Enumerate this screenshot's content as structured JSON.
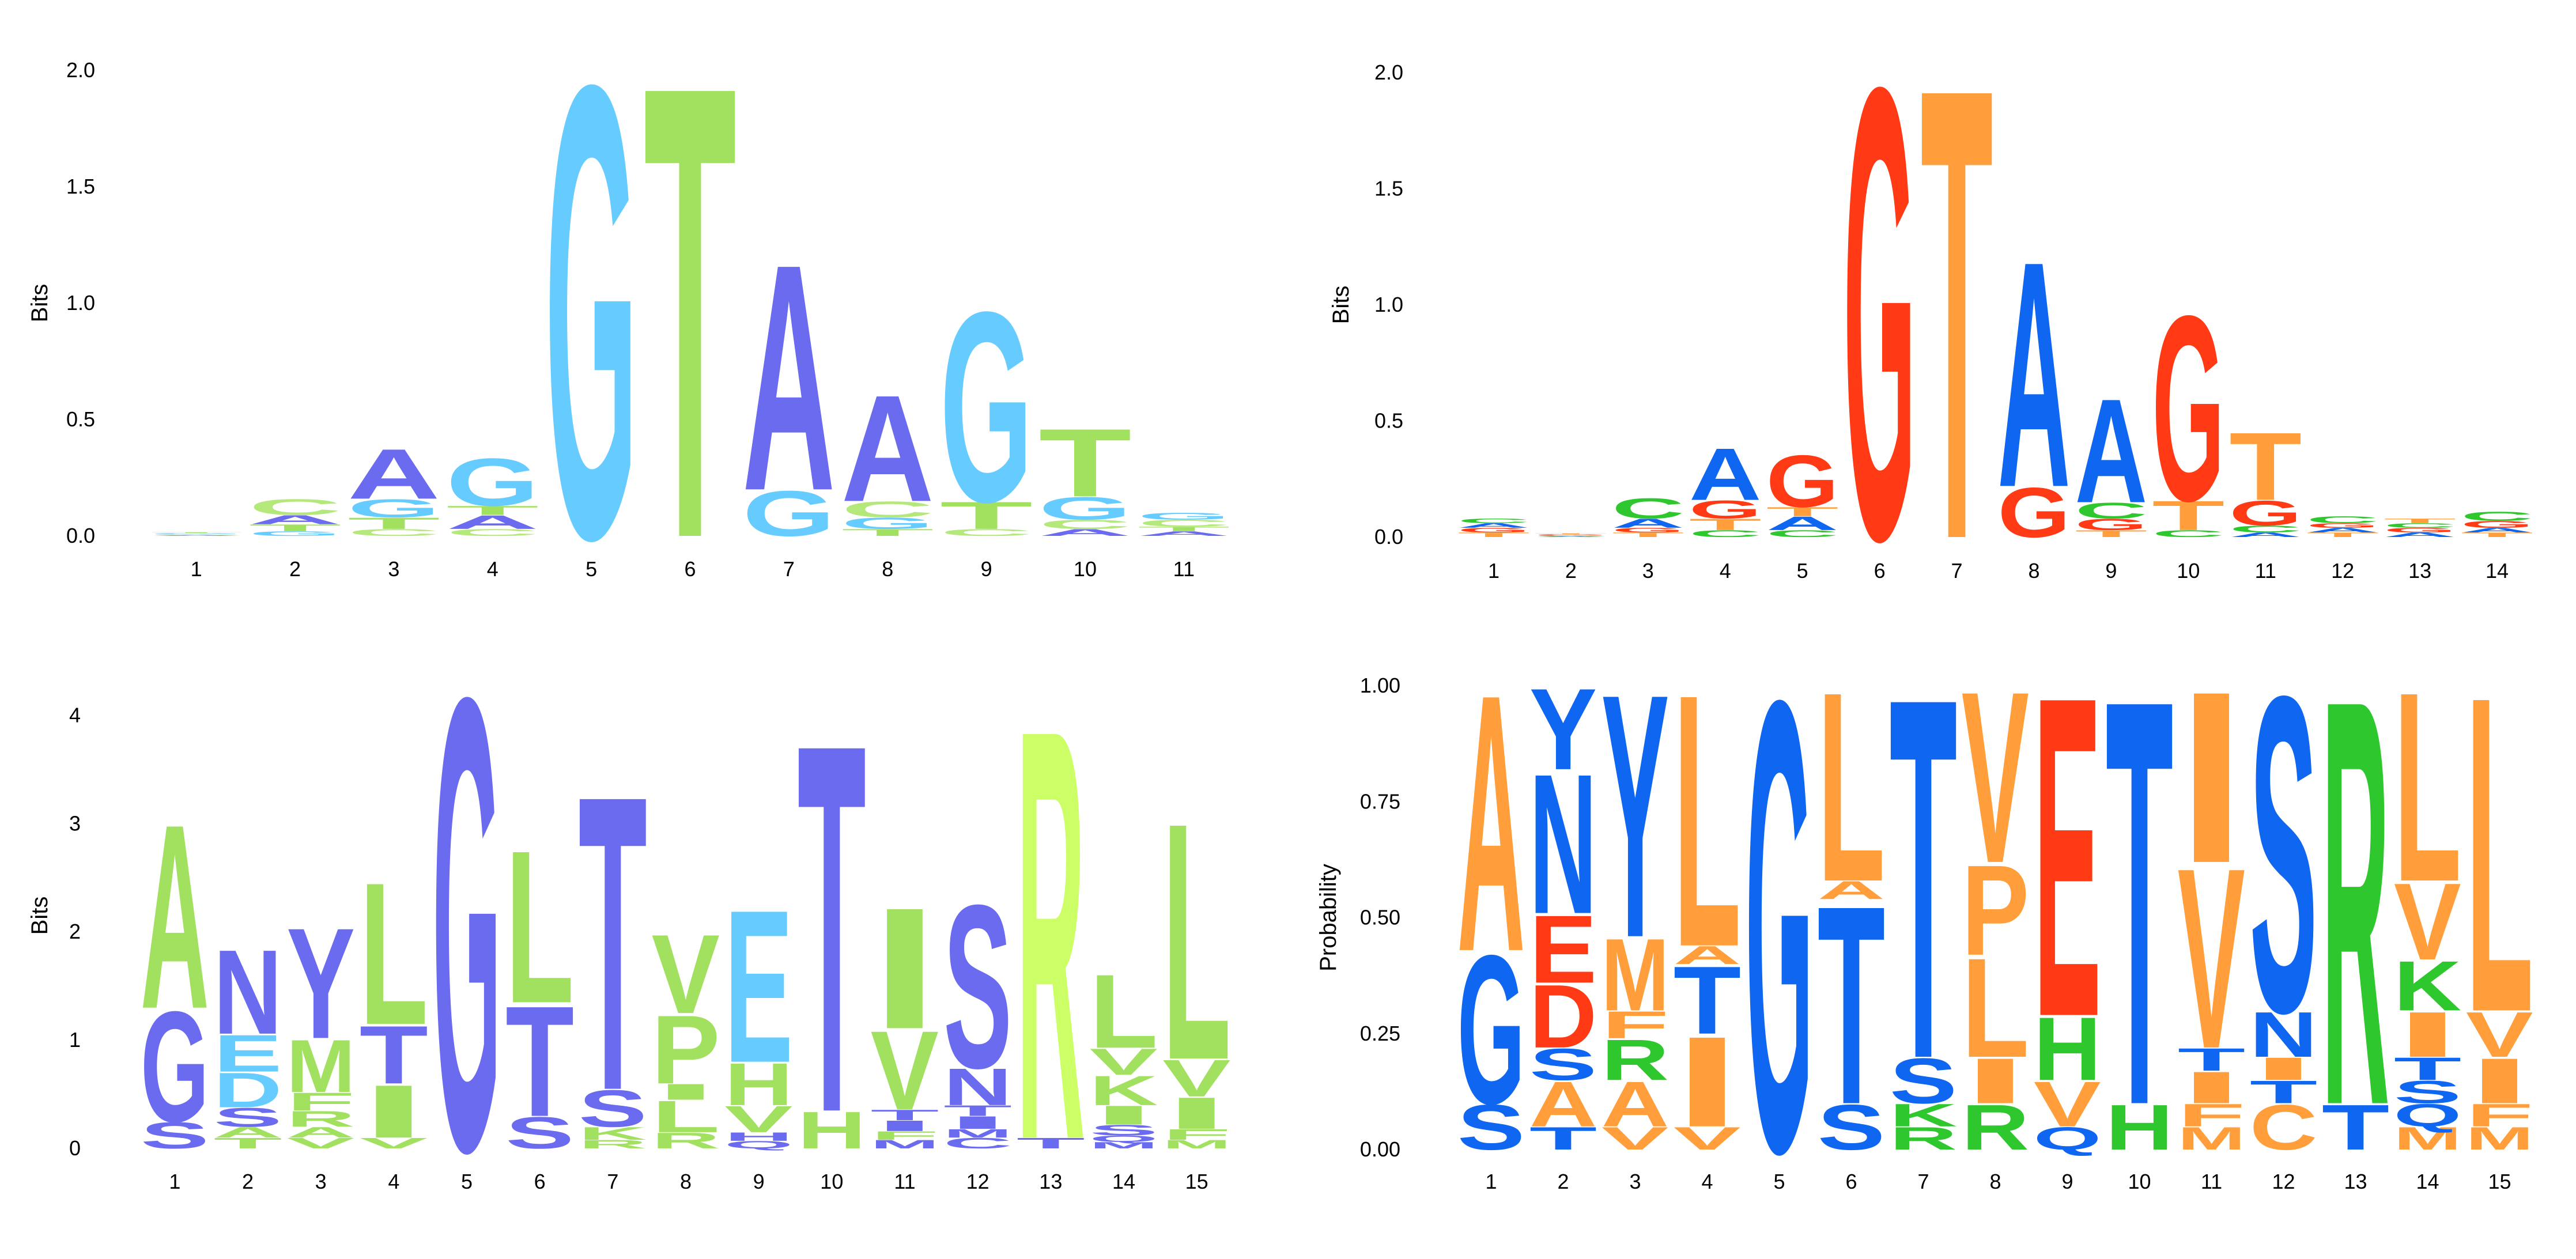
{
  "colors": {
    "p1": {
      "A": "#6b6bf0",
      "C": "#b5e87a",
      "G": "#66ccff",
      "T": "#a2e060"
    },
    "p2": {
      "A": "#0f66f0",
      "C": "#2ec82e",
      "G": "#ff3a14",
      "T": "#ff9e3a"
    },
    "p3": {
      "h1": "#6b6bf0",
      "h2": "#a2e060",
      "h3": "#66ccff",
      "h4": "#ccff66"
    },
    "p4": {
      "A": "#ff9e3a",
      "C": "#ff9e3a",
      "D": "#ff3a14",
      "E": "#ff3a14",
      "F": "#ff9e3a",
      "G": "#0f66f0",
      "H": "#2ec82e",
      "I": "#ff9e3a",
      "K": "#2ec82e",
      "L": "#ff9e3a",
      "M": "#ff9e3a",
      "N": "#0f66f0",
      "P": "#ff9e3a",
      "Q": "#0f66f0",
      "R": "#2ec82e",
      "S": "#0f66f0",
      "T": "#0f66f0",
      "V": "#ff9e3a",
      "W": "#ff9e3a",
      "Y": "#0f66f0"
    }
  },
  "chart_data": [
    {
      "type": "sequence-logo",
      "ylabel": "Bits",
      "ylim": [
        0,
        2
      ],
      "yticks": [
        "0.0",
        "0.5",
        "1.0",
        "1.5",
        "2.0"
      ],
      "positions": [
        "1",
        "2",
        "3",
        "4",
        "5",
        "6",
        "7",
        "8",
        "9",
        "10",
        "11"
      ],
      "stacks": [
        [
          [
            "A",
            0.004
          ],
          [
            "C",
            0.004
          ],
          [
            "G",
            0.004
          ],
          [
            "T",
            0.004
          ]
        ],
        [
          [
            "G",
            0.02
          ],
          [
            "T",
            0.03
          ],
          [
            "A",
            0.04
          ],
          [
            "C",
            0.07
          ]
        ],
        [
          [
            "C",
            0.03
          ],
          [
            "T",
            0.05
          ],
          [
            "G",
            0.08
          ],
          [
            "A",
            0.22
          ]
        ],
        [
          [
            "C",
            0.03
          ],
          [
            "A",
            0.06
          ],
          [
            "T",
            0.04
          ],
          [
            "G",
            0.21
          ]
        ],
        [
          [
            "G",
            2.0
          ]
        ],
        [
          [
            "T",
            2.0
          ]
        ],
        [
          [
            "G",
            0.2
          ],
          [
            "A",
            1.0
          ]
        ],
        [
          [
            "T",
            0.03
          ],
          [
            "G",
            0.05
          ],
          [
            "C",
            0.07
          ],
          [
            "A",
            0.47
          ]
        ],
        [
          [
            "C",
            0.03
          ],
          [
            "T",
            0.12
          ],
          [
            "G",
            0.84
          ]
        ],
        [
          [
            "A",
            0.03
          ],
          [
            "C",
            0.04
          ],
          [
            "G",
            0.1
          ],
          [
            "T",
            0.3
          ]
        ],
        [
          [
            "A",
            0.02
          ],
          [
            "T",
            0.02
          ],
          [
            "C",
            0.03
          ],
          [
            "G",
            0.03
          ]
        ]
      ]
    },
    {
      "type": "sequence-logo",
      "ylabel": "Bits",
      "ylim": [
        0,
        2
      ],
      "yticks": [
        "0.0",
        "0.5",
        "1.0",
        "1.5",
        "2.0"
      ],
      "positions": [
        "1",
        "2",
        "3",
        "4",
        "5",
        "6",
        "7",
        "8",
        "9",
        "10",
        "11",
        "12",
        "13",
        "14"
      ],
      "stacks": [
        [
          [
            "T",
            0.02
          ],
          [
            "G",
            0.02
          ],
          [
            "A",
            0.02
          ],
          [
            "C",
            0.02
          ]
        ],
        [
          [
            "A",
            0.004
          ],
          [
            "C",
            0.004
          ],
          [
            "G",
            0.004
          ],
          [
            "T",
            0.004
          ]
        ],
        [
          [
            "T",
            0.02
          ],
          [
            "G",
            0.02
          ],
          [
            "A",
            0.04
          ],
          [
            "C",
            0.09
          ]
        ],
        [
          [
            "C",
            0.03
          ],
          [
            "T",
            0.05
          ],
          [
            "G",
            0.08
          ],
          [
            "A",
            0.23
          ]
        ],
        [
          [
            "C",
            0.03
          ],
          [
            "A",
            0.06
          ],
          [
            "T",
            0.04
          ],
          [
            "G",
            0.23
          ]
        ],
        [
          [
            "G",
            2.0
          ]
        ],
        [
          [
            "T",
            2.0
          ]
        ],
        [
          [
            "G",
            0.22
          ],
          [
            "A",
            1.0
          ]
        ],
        [
          [
            "T",
            0.03
          ],
          [
            "G",
            0.05
          ],
          [
            "C",
            0.07
          ],
          [
            "A",
            0.46
          ]
        ],
        [
          [
            "C",
            0.03
          ],
          [
            "T",
            0.13
          ],
          [
            "G",
            0.82
          ]
        ],
        [
          [
            "A",
            0.02
          ],
          [
            "C",
            0.03
          ],
          [
            "G",
            0.11
          ],
          [
            "T",
            0.3
          ]
        ],
        [
          [
            "T",
            0.02
          ],
          [
            "A",
            0.02
          ],
          [
            "G",
            0.02
          ],
          [
            "C",
            0.03
          ]
        ],
        [
          [
            "A",
            0.02
          ],
          [
            "G",
            0.02
          ],
          [
            "C",
            0.02
          ],
          [
            "T",
            0.02
          ]
        ],
        [
          [
            "T",
            0.02
          ],
          [
            "A",
            0.02
          ],
          [
            "G",
            0.03
          ],
          [
            "C",
            0.04
          ]
        ]
      ]
    },
    {
      "type": "sequence-logo",
      "ylabel": "Bits",
      "ylim": [
        0,
        4.3
      ],
      "yticks": [
        "0",
        "1",
        "2",
        "3",
        "4"
      ],
      "positions": [
        "1",
        "2",
        "3",
        "4",
        "5",
        "6",
        "7",
        "8",
        "9",
        "10",
        "11",
        "12",
        "13",
        "14",
        "15"
      ],
      "stacks": [
        [
          [
            "S",
            0.25,
            "h1"
          ],
          [
            "G",
            1.05,
            "h1"
          ],
          [
            "A",
            1.75,
            "h2"
          ]
        ],
        [
          [
            "T",
            0.1,
            "h2"
          ],
          [
            "A",
            0.1,
            "h2"
          ],
          [
            "S",
            0.18,
            "h1"
          ],
          [
            "D",
            0.33,
            "h3"
          ],
          [
            "E",
            0.35,
            "h3"
          ],
          [
            "N",
            0.8,
            "h1"
          ]
        ],
        [
          [
            "V",
            0.1,
            "h2"
          ],
          [
            "A",
            0.1,
            "h2"
          ],
          [
            "R",
            0.15,
            "h2"
          ],
          [
            "F",
            0.17,
            "h2"
          ],
          [
            "M",
            0.5,
            "h2"
          ],
          [
            "Y",
            1.05,
            "h1"
          ]
        ],
        [
          [
            "V",
            0.1,
            "h2"
          ],
          [
            "I",
            0.5,
            "h2"
          ],
          [
            "T",
            0.55,
            "h1"
          ],
          [
            "L",
            1.35,
            "h2"
          ]
        ],
        [
          [
            "G",
            4.3,
            "h1"
          ]
        ],
        [
          [
            "S",
            0.3,
            "h1"
          ],
          [
            "T",
            1.05,
            "h1"
          ],
          [
            "L",
            1.45,
            "h2"
          ]
        ],
        [
          [
            "R",
            0.08,
            "h2"
          ],
          [
            "K",
            0.12,
            "h2"
          ],
          [
            "S",
            0.35,
            "h1"
          ],
          [
            "T",
            2.8,
            "h1"
          ]
        ],
        [
          [
            "R",
            0.15,
            "h2"
          ],
          [
            "L",
            0.3,
            "h2"
          ],
          [
            "I",
            0.15,
            "h2"
          ],
          [
            "P",
            0.65,
            "h2"
          ],
          [
            "V",
            0.75,
            "h2"
          ]
        ],
        [
          [
            "Q",
            0.07,
            "h1"
          ],
          [
            "H",
            0.08,
            "h1"
          ],
          [
            "V",
            0.25,
            "h2"
          ],
          [
            "H",
            0.4,
            "h2"
          ],
          [
            "E",
            1.45,
            "h3"
          ]
        ],
        [
          [
            "H",
            0.35,
            "h2"
          ],
          [
            "T",
            3.5,
            "h1"
          ]
        ],
        [
          [
            "M",
            0.08,
            "h1"
          ],
          [
            "F",
            0.08,
            "h2"
          ],
          [
            "I",
            0.1,
            "h1"
          ],
          [
            "T",
            0.1,
            "h1"
          ],
          [
            "V",
            0.75,
            "h2"
          ],
          [
            "I",
            1.15,
            "h2"
          ]
        ],
        [
          [
            "C",
            0.1,
            "h1"
          ],
          [
            "M",
            0.08,
            "h1"
          ],
          [
            "I",
            0.12,
            "h1"
          ],
          [
            "T",
            0.1,
            "h1"
          ],
          [
            "N",
            0.35,
            "h1"
          ],
          [
            "S",
            1.55,
            "h1"
          ]
        ],
        [
          [
            "T",
            0.1,
            "h1"
          ],
          [
            "R",
            3.9,
            "h4"
          ]
        ],
        [
          [
            "M",
            0.06,
            "h1"
          ],
          [
            "Q",
            0.06,
            "h1"
          ],
          [
            "S",
            0.1,
            "h1"
          ],
          [
            "I",
            0.18,
            "h2"
          ],
          [
            "K",
            0.28,
            "h2"
          ],
          [
            "V",
            0.25,
            "h2"
          ],
          [
            "L",
            0.7,
            "h2"
          ]
        ],
        [
          [
            "M",
            0.08,
            "h2"
          ],
          [
            "F",
            0.1,
            "h2"
          ],
          [
            "I",
            0.3,
            "h2"
          ],
          [
            "V",
            0.35,
            "h2"
          ],
          [
            "L",
            2.25,
            "h2"
          ]
        ]
      ]
    },
    {
      "type": "sequence-logo",
      "ylabel": "Probability",
      "ylim": [
        0,
        1
      ],
      "yticks": [
        "0.00",
        "0.25",
        "0.50",
        "0.75",
        "1.00"
      ],
      "positions": [
        "1",
        "2",
        "3",
        "4",
        "5",
        "6",
        "7",
        "8",
        "9",
        "10",
        "11",
        "12",
        "13",
        "14",
        "15"
      ],
      "stacks": [
        [
          [
            "S",
            0.1
          ],
          [
            "G",
            0.33
          ],
          [
            "A",
            0.57
          ]
        ],
        [
          [
            "T",
            0.05
          ],
          [
            "A",
            0.1
          ],
          [
            "S",
            0.07
          ],
          [
            "D",
            0.14
          ],
          [
            "E",
            0.15
          ],
          [
            "N",
            0.31
          ],
          [
            "Y",
            0.18
          ]
        ],
        [
          [
            "V",
            0.05
          ],
          [
            "A",
            0.1
          ],
          [
            "R",
            0.09
          ],
          [
            "F",
            0.06
          ],
          [
            "M",
            0.16
          ],
          [
            "Y",
            0.54
          ]
        ],
        [
          [
            "V",
            0.05
          ],
          [
            "I",
            0.2
          ],
          [
            "T",
            0.15
          ],
          [
            "A",
            0.04
          ],
          [
            "L",
            0.56
          ]
        ],
        [
          [
            "G",
            1.0
          ]
        ],
        [
          [
            "S",
            0.1
          ],
          [
            "T",
            0.44
          ],
          [
            "A",
            0.04
          ],
          [
            "L",
            0.42
          ]
        ],
        [
          [
            "R",
            0.05
          ],
          [
            "K",
            0.05
          ],
          [
            "S",
            0.1
          ],
          [
            "T",
            0.8
          ]
        ],
        [
          [
            "R",
            0.1
          ],
          [
            "I",
            0.1
          ],
          [
            "L",
            0.22
          ],
          [
            "P",
            0.2
          ],
          [
            "V",
            0.38
          ]
        ],
        [
          [
            "Q",
            0.05
          ],
          [
            "V",
            0.1
          ],
          [
            "H",
            0.14
          ],
          [
            "E",
            0.71
          ]
        ],
        [
          [
            "H",
            0.1
          ],
          [
            "T",
            0.9
          ]
        ],
        [
          [
            "M",
            0.05
          ],
          [
            "F",
            0.05
          ],
          [
            "I",
            0.07
          ],
          [
            "T",
            0.05
          ],
          [
            "V",
            0.4
          ],
          [
            "I",
            0.38
          ]
        ],
        [
          [
            "C",
            0.1
          ],
          [
            "T",
            0.05
          ],
          [
            "I",
            0.05
          ],
          [
            "N",
            0.1
          ],
          [
            "S",
            0.7
          ]
        ],
        [
          [
            "T",
            0.1
          ],
          [
            "R",
            0.9
          ]
        ],
        [
          [
            "M",
            0.05
          ],
          [
            "Q",
            0.05
          ],
          [
            "S",
            0.05
          ],
          [
            "T",
            0.05
          ],
          [
            "I",
            0.1
          ],
          [
            "K",
            0.11
          ],
          [
            "V",
            0.17
          ],
          [
            "L",
            0.42
          ]
        ],
        [
          [
            "M",
            0.05
          ],
          [
            "F",
            0.05
          ],
          [
            "I",
            0.1
          ],
          [
            "V",
            0.1
          ],
          [
            "L",
            0.7
          ]
        ]
      ]
    }
  ]
}
